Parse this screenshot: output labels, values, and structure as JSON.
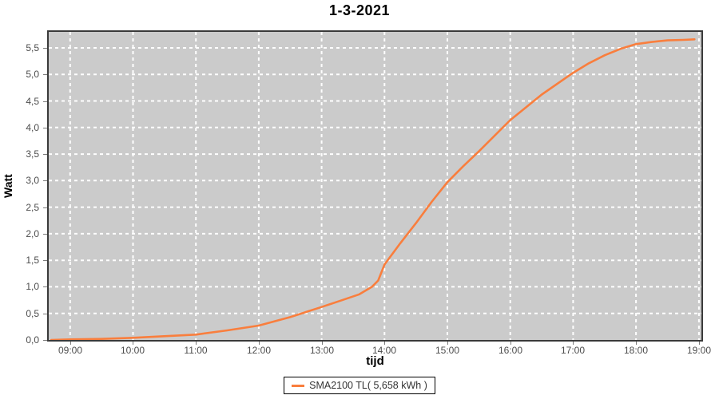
{
  "chart_data": {
    "type": "line",
    "title": "1-3-2021",
    "xlabel": "tijd",
    "ylabel": "Watt",
    "x_domain": [
      8.66,
      19.04
    ],
    "y_domain": [
      0,
      5.8
    ],
    "grid": true,
    "grid_color": "#ffffff",
    "plot_bg": "#cbcbcb",
    "legend_position": "bottom",
    "xticks": {
      "values": [
        9,
        10,
        11,
        12,
        13,
        14,
        15,
        16,
        17,
        18,
        19
      ],
      "labels": [
        "09:00",
        "10:00",
        "11:00",
        "12:00",
        "13:00",
        "14:00",
        "15:00",
        "16:00",
        "17:00",
        "18:00",
        "19:00"
      ]
    },
    "yticks": {
      "values": [
        0,
        0.5,
        1,
        1.5,
        2,
        2.5,
        3,
        3.5,
        4,
        4.5,
        5,
        5.5
      ],
      "labels": [
        "0,0",
        "0,5",
        "1,0",
        "1,5",
        "2,0",
        "2,5",
        "3,0",
        "3,5",
        "4,0",
        "4,5",
        "5,0",
        "5,5"
      ]
    },
    "series": [
      {
        "name": "SMA2100 TL( 5,658 kWh )",
        "color": "#f97e3d",
        "points": [
          [
            8.7,
            0.0
          ],
          [
            9.0,
            0.01
          ],
          [
            9.5,
            0.02
          ],
          [
            10.0,
            0.04
          ],
          [
            10.5,
            0.07
          ],
          [
            11.0,
            0.1
          ],
          [
            11.5,
            0.18
          ],
          [
            12.0,
            0.27
          ],
          [
            12.5,
            0.43
          ],
          [
            13.0,
            0.62
          ],
          [
            13.3,
            0.74
          ],
          [
            13.6,
            0.86
          ],
          [
            13.8,
            1.0
          ],
          [
            13.9,
            1.12
          ],
          [
            14.0,
            1.42
          ],
          [
            14.25,
            1.82
          ],
          [
            14.5,
            2.2
          ],
          [
            14.75,
            2.6
          ],
          [
            15.0,
            2.97
          ],
          [
            15.25,
            3.27
          ],
          [
            15.5,
            3.55
          ],
          [
            16.0,
            4.14
          ],
          [
            16.5,
            4.62
          ],
          [
            17.0,
            5.03
          ],
          [
            17.25,
            5.21
          ],
          [
            17.5,
            5.36
          ],
          [
            17.75,
            5.48
          ],
          [
            18.0,
            5.57
          ],
          [
            18.25,
            5.61
          ],
          [
            18.5,
            5.64
          ],
          [
            18.75,
            5.65
          ],
          [
            18.93,
            5.66
          ]
        ]
      }
    ]
  }
}
